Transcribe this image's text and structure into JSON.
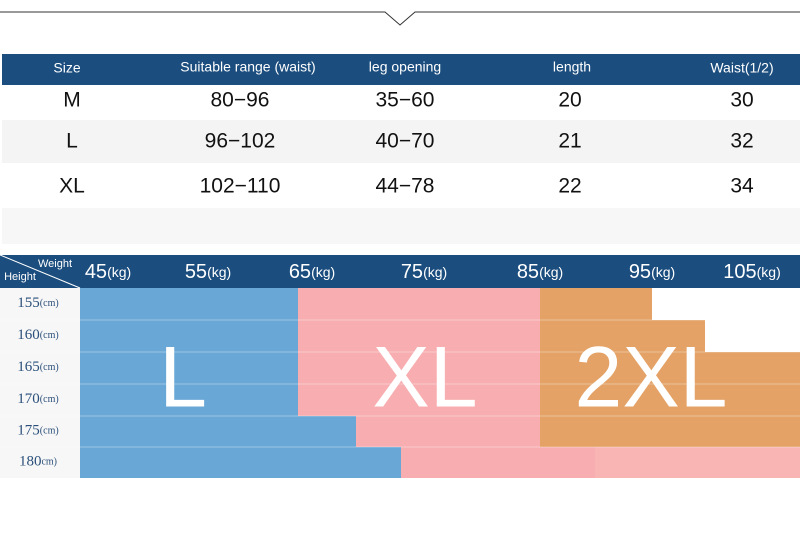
{
  "table": {
    "headers": [
      "Size",
      "Suitable range (waist)",
      "leg opening",
      "length",
      "Waist(1/2)"
    ],
    "rows": [
      [
        "M",
        "80−96",
        "35−60",
        "20",
        "30"
      ],
      [
        "L",
        "96−102",
        "40−70",
        "21",
        "32"
      ],
      [
        "XL",
        "102−110",
        "44−78",
        "22",
        "34"
      ]
    ]
  },
  "grid": {
    "weight_label": "Weight",
    "height_label": "Height",
    "weights": [
      {
        "num": "45",
        "unit": "(kg)"
      },
      {
        "num": "55",
        "unit": "(kg)"
      },
      {
        "num": "65",
        "unit": "(kg)"
      },
      {
        "num": "75",
        "unit": "(kg)"
      },
      {
        "num": "85",
        "unit": "(kg)"
      },
      {
        "num": "95",
        "unit": "(kg)"
      },
      {
        "num": "105",
        "unit": "(kg)"
      }
    ],
    "heights": [
      {
        "num": "155",
        "unit": "(cm)"
      },
      {
        "num": "160",
        "unit": "(cm)"
      },
      {
        "num": "165",
        "unit": "(cm)"
      },
      {
        "num": "170",
        "unit": "(cm)"
      },
      {
        "num": "175",
        "unit": "(cm)"
      },
      {
        "num": "180",
        "unit": "cm)"
      }
    ],
    "regions": [
      "L",
      "XL",
      "2XL"
    ]
  }
}
